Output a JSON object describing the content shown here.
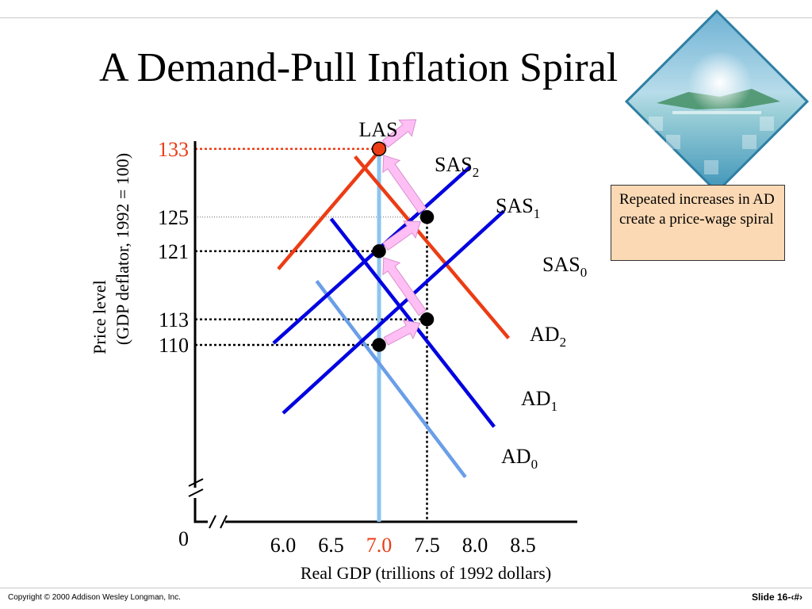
{
  "slide": {
    "title": "A Demand-Pull Inflation Spiral",
    "callout": "Repeated increases in AD create a price-wage spiral",
    "footer_left": "Copyright © 2000 Addison Wesley Longman, Inc.",
    "footer_right": "Slide 16-‹#›"
  },
  "colors": {
    "las": "#8dc4f0",
    "ad0": "#6a9ee8",
    "blue": "#0000e0",
    "red": "#ec3c14",
    "arrow_pink": "#ffbff5",
    "callout_fill": "#fbd9b4",
    "highlight_red": "#ec3c14"
  },
  "chart_data": {
    "type": "line",
    "xlabel": "Real GDP (trillions of 1992 dollars)",
    "ylabel_line1": "Price level",
    "ylabel_line2": "(GDP deflator, 1992 = 100)",
    "origin_label": "0",
    "x_ticks": [
      {
        "value": 6.0,
        "label": "6.0"
      },
      {
        "value": 6.5,
        "label": "6.5"
      },
      {
        "value": 7.0,
        "label": "7.0",
        "highlight": true
      },
      {
        "value": 7.5,
        "label": "7.5"
      },
      {
        "value": 8.0,
        "label": "8.0"
      },
      {
        "value": 8.5,
        "label": "8.5"
      }
    ],
    "y_ticks": [
      {
        "value": 110,
        "label": "110"
      },
      {
        "value": 113,
        "label": "113"
      },
      {
        "value": 121,
        "label": "121"
      },
      {
        "value": 125,
        "label": "125"
      },
      {
        "value": 133,
        "label": "133",
        "highlight": true
      }
    ],
    "las": {
      "name": "LAS",
      "x": 7.0
    },
    "series": [
      {
        "name": "AD",
        "sub": "0",
        "color_key": "ad0",
        "points": [
          [
            6.35,
            117.5
          ],
          [
            7.9,
            94.5
          ]
        ]
      },
      {
        "name": "AD",
        "sub": "1",
        "color_key": "blue",
        "points": [
          [
            6.5,
            124.8
          ],
          [
            8.2,
            100.4
          ]
        ]
      },
      {
        "name": "AD",
        "sub": "2",
        "color_key": "red",
        "points": [
          [
            6.75,
            132.1
          ],
          [
            8.35,
            110.8
          ]
        ]
      },
      {
        "name": "SAS",
        "sub": "0",
        "color_key": "blue",
        "points": [
          [
            6.0,
            102.0
          ],
          [
            8.3,
            125.7
          ]
        ]
      },
      {
        "name": "SAS",
        "sub": "1",
        "color_key": "blue",
        "points": [
          [
            5.9,
            110.2
          ],
          [
            7.95,
            130.9
          ]
        ]
      },
      {
        "name": "SAS",
        "sub": "2",
        "color_key": "red",
        "points": [
          [
            5.95,
            118.9
          ],
          [
            7.12,
            134.3
          ]
        ]
      }
    ],
    "equilibria": [
      {
        "x": 7.0,
        "y": 110
      },
      {
        "x": 7.5,
        "y": 113
      },
      {
        "x": 7.0,
        "y": 121
      },
      {
        "x": 7.5,
        "y": 125
      },
      {
        "x": 7.0,
        "y": 133,
        "highlight": true
      }
    ],
    "spiral_path": [
      [
        7.0,
        110
      ],
      [
        7.5,
        113
      ],
      [
        7.0,
        121
      ],
      [
        7.5,
        125
      ],
      [
        7.0,
        133
      ],
      [
        7.45,
        137
      ]
    ]
  }
}
